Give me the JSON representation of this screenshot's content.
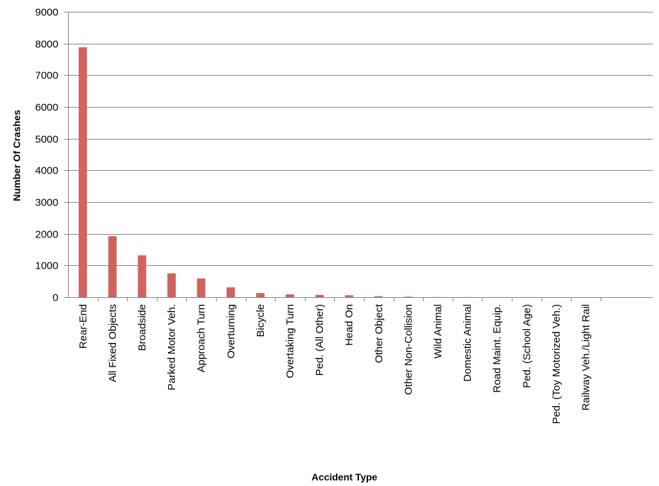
{
  "chart_data": {
    "type": "bar",
    "title": "",
    "xlabel": "Accident Type",
    "ylabel": "Number Of Crashes",
    "ylim": [
      0,
      9000
    ],
    "yticks": [
      0,
      1000,
      2000,
      3000,
      4000,
      5000,
      6000,
      7000,
      8000,
      9000
    ],
    "grid": true,
    "legend": "none",
    "bar_color": "#D0625F",
    "categories": [
      "Rear-End",
      "All Fixed Objects",
      "Broadside",
      "Parked Motor Veh.",
      "Approach Turn",
      "Overturning",
      "Bicycle",
      "Overtaking Turn",
      "Ped. (All Other)",
      "Head On",
      "Other Object",
      "Other Non-Collision",
      "Wild Animal",
      "Domestic Animal",
      "Road Maint. Equip.",
      "Ped. (School Age)",
      "Ped. (Toy Motorized Veh.)",
      "Railway Veh./Light Rail"
    ],
    "values": [
      7880,
      1920,
      1320,
      750,
      590,
      310,
      130,
      90,
      70,
      60,
      30,
      15,
      5,
      4,
      2,
      2,
      1,
      1
    ]
  }
}
